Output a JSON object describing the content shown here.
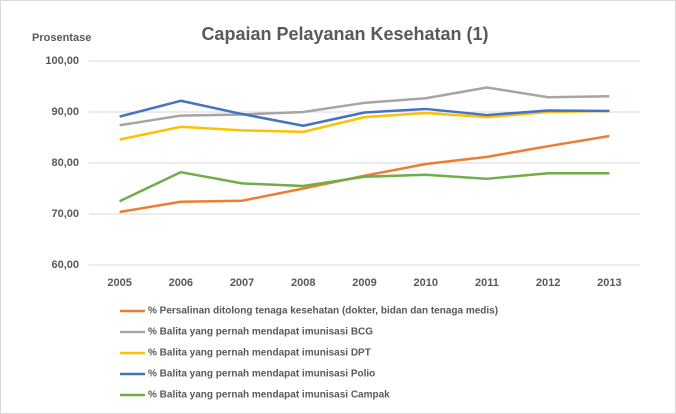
{
  "chart_data": {
    "type": "line",
    "title": "Capaian Pelayanan Kesehatan (1)",
    "y_label": "Prosentase",
    "categories": [
      "2005",
      "2006",
      "2007",
      "2008",
      "2009",
      "2010",
      "2011",
      "2012",
      "2013"
    ],
    "series": [
      {
        "name": "% Persalinan ditolong tenaga kesehatan (dokter, bidan dan tenaga medis)",
        "color": "#ed7d31",
        "values": [
          70.4,
          72.4,
          72.6,
          75.0,
          77.5,
          79.8,
          81.2,
          83.3,
          85.3
        ]
      },
      {
        "name": "% Balita yang pernah mendapat imunisasi BCG",
        "color": "#a5a5a5",
        "values": [
          87.4,
          89.3,
          89.5,
          90.0,
          91.8,
          92.7,
          94.8,
          92.9,
          93.1
        ]
      },
      {
        "name": "% Balita yang pernah mendapat imunisasi DPT",
        "color": "#ffc000",
        "values": [
          84.6,
          87.1,
          86.4,
          86.1,
          89.0,
          89.8,
          89.0,
          90.0,
          90.2
        ]
      },
      {
        "name": "% Balita yang pernah mendapat imunisasi Polio",
        "color": "#4472c4",
        "values": [
          89.1,
          92.2,
          89.6,
          87.3,
          89.9,
          90.6,
          89.4,
          90.3,
          90.2
        ]
      },
      {
        "name": "% Balita yang pernah mendapat imunisasi Campak",
        "color": "#70ad47",
        "values": [
          72.5,
          78.2,
          76.0,
          75.5,
          77.3,
          77.7,
          76.9,
          78.0,
          78.0
        ]
      }
    ],
    "ylim": [
      60,
      100
    ],
    "yticks": [
      {
        "value": 60,
        "label": "60,00"
      },
      {
        "value": 70,
        "label": "70,00"
      },
      {
        "value": 80,
        "label": "80,00"
      },
      {
        "value": 90,
        "label": "90,00"
      },
      {
        "value": 100,
        "label": "100,00"
      }
    ],
    "grid": true,
    "legend": "bottom"
  }
}
